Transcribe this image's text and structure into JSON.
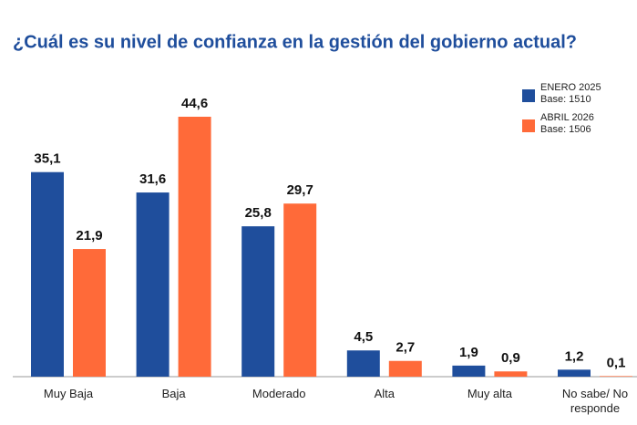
{
  "chart_data": {
    "type": "bar",
    "title": "¿Cuál es su nivel de confianza en la gestión del gobierno actual?",
    "categories": [
      "Muy Baja",
      "Baja",
      "Moderado",
      "Alta",
      "Muy alta",
      "No sabe/ No responde"
    ],
    "series": [
      {
        "name": "ENERO 2025",
        "note": "Base: 1510",
        "color": "#1f4e9c",
        "values": [
          35.1,
          31.6,
          25.8,
          4.5,
          1.9,
          1.2
        ],
        "value_labels": [
          "35,1",
          "31,6",
          "25,8",
          "4,5",
          "1,9",
          "1,2"
        ]
      },
      {
        "name": "ABRIL 2026",
        "note": "Base: 1506",
        "color": "#ff6a39",
        "values": [
          21.9,
          44.6,
          29.7,
          2.7,
          0.9,
          0.1
        ],
        "value_labels": [
          "21,9",
          "44,6",
          "29,7",
          "2,7",
          "0,9",
          "0,1"
        ]
      }
    ]
  }
}
